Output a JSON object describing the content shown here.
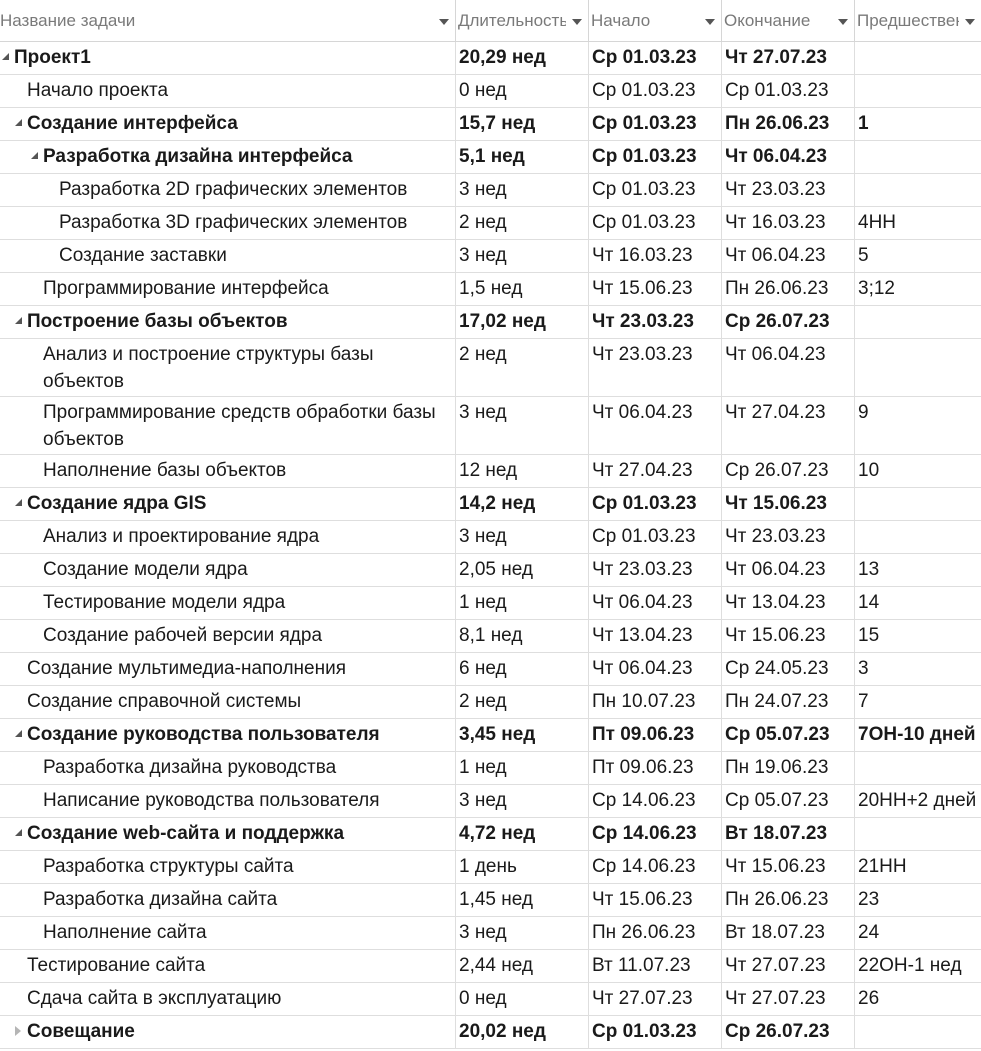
{
  "columns": [
    {
      "label": "Название задачи"
    },
    {
      "label": "Длительность"
    },
    {
      "label": "Начало"
    },
    {
      "label": "Окончание"
    },
    {
      "label": "Предшественники"
    }
  ],
  "rows": [
    {
      "level": 0,
      "summary": true,
      "expanded": true,
      "name": "Проект1",
      "duration": "20,29 нед",
      "start": "Ср 01.03.23",
      "finish": "Чт 27.07.23",
      "pred": ""
    },
    {
      "level": 1,
      "summary": false,
      "name": "Начало проекта",
      "duration": "0 нед",
      "start": "Ср 01.03.23",
      "finish": "Ср 01.03.23",
      "pred": ""
    },
    {
      "level": 1,
      "summary": true,
      "expanded": true,
      "name": "Создание интерфейса",
      "duration": "15,7 нед",
      "start": "Ср 01.03.23",
      "finish": "Пн 26.06.23",
      "pred": "1"
    },
    {
      "level": 2,
      "summary": true,
      "expanded": true,
      "name": "Разработка дизайна интерфейса",
      "duration": "5,1 нед",
      "start": "Ср 01.03.23",
      "finish": "Чт 06.04.23",
      "pred": ""
    },
    {
      "level": 3,
      "summary": false,
      "name": "Разработка 2D графических элементов",
      "duration": "3 нед",
      "start": "Ср 01.03.23",
      "finish": "Чт 23.03.23",
      "pred": ""
    },
    {
      "level": 3,
      "summary": false,
      "name": "Разработка 3D графических элементов",
      "duration": "2 нед",
      "start": "Ср 01.03.23",
      "finish": "Чт 16.03.23",
      "pred": "4НН"
    },
    {
      "level": 3,
      "summary": false,
      "name": "Создание заставки",
      "duration": "3 нед",
      "start": "Чт 16.03.23",
      "finish": "Чт 06.04.23",
      "pred": "5"
    },
    {
      "level": 2,
      "summary": false,
      "name": "Программирование интерфейса",
      "duration": "1,5 нед",
      "start": "Чт 15.06.23",
      "finish": "Пн 26.06.23",
      "pred": "3;12"
    },
    {
      "level": 1,
      "summary": true,
      "expanded": true,
      "name": "Построение базы объектов",
      "duration": "17,02 нед",
      "start": "Чт 23.03.23",
      "finish": "Ср 26.07.23",
      "pred": ""
    },
    {
      "level": 2,
      "summary": false,
      "tall": true,
      "name": "Анализ и построение структуры базы объектов",
      "duration": "2 нед",
      "start": "Чт 23.03.23",
      "finish": "Чт 06.04.23",
      "pred": ""
    },
    {
      "level": 2,
      "summary": false,
      "tall": true,
      "name": "Программирование средств обработки базы объектов",
      "duration": "3 нед",
      "start": "Чт 06.04.23",
      "finish": "Чт 27.04.23",
      "pred": "9"
    },
    {
      "level": 2,
      "summary": false,
      "name": "Наполнение базы объектов",
      "duration": "12 нед",
      "start": "Чт 27.04.23",
      "finish": "Ср 26.07.23",
      "pred": "10"
    },
    {
      "level": 1,
      "summary": true,
      "expanded": true,
      "name": "Создание ядра GIS",
      "duration": "14,2 нед",
      "start": "Ср 01.03.23",
      "finish": "Чт 15.06.23",
      "pred": ""
    },
    {
      "level": 2,
      "summary": false,
      "name": "Анализ и проектирование ядра",
      "duration": "3 нед",
      "start": "Ср 01.03.23",
      "finish": "Чт 23.03.23",
      "pred": ""
    },
    {
      "level": 2,
      "summary": false,
      "name": "Создание модели ядра",
      "duration": "2,05 нед",
      "start": "Чт 23.03.23",
      "finish": "Чт 06.04.23",
      "pred": "13"
    },
    {
      "level": 2,
      "summary": false,
      "name": "Тестирование модели ядра",
      "duration": "1 нед",
      "start": "Чт 06.04.23",
      "finish": "Чт 13.04.23",
      "pred": "14"
    },
    {
      "level": 2,
      "summary": false,
      "name": "Создание рабочей версии ядра",
      "duration": "8,1 нед",
      "start": "Чт 13.04.23",
      "finish": "Чт 15.06.23",
      "pred": "15"
    },
    {
      "level": 1,
      "summary": false,
      "name": "Создание мультимедиа-наполнения",
      "duration": "6 нед",
      "start": "Чт 06.04.23",
      "finish": "Ср 24.05.23",
      "pred": "3"
    },
    {
      "level": 1,
      "summary": false,
      "name": "Создание справочной системы",
      "duration": "2 нед",
      "start": "Пн 10.07.23",
      "finish": "Пн 24.07.23",
      "pred": "7"
    },
    {
      "level": 1,
      "summary": true,
      "expanded": true,
      "name": "Создание руководства пользователя",
      "duration": "3,45 нед",
      "start": "Пт 09.06.23",
      "finish": "Ср 05.07.23",
      "pred": "7ОН-10 дней"
    },
    {
      "level": 2,
      "summary": false,
      "name": "Разработка дизайна руководства",
      "duration": "1 нед",
      "start": "Пт 09.06.23",
      "finish": "Пн 19.06.23",
      "pred": ""
    },
    {
      "level": 2,
      "summary": false,
      "name": "Написание руководства пользователя",
      "duration": "3 нед",
      "start": "Ср 14.06.23",
      "finish": "Ср 05.07.23",
      "pred": "20НН+2 дней"
    },
    {
      "level": 1,
      "summary": true,
      "expanded": true,
      "name": "Создание web-сайта и поддержка",
      "duration": "4,72 нед",
      "start": "Ср 14.06.23",
      "finish": "Вт 18.07.23",
      "pred": ""
    },
    {
      "level": 2,
      "summary": false,
      "name": "Разработка структуры сайта",
      "duration": "1 день",
      "start": "Ср 14.06.23",
      "finish": "Чт 15.06.23",
      "pred": "21НН"
    },
    {
      "level": 2,
      "summary": false,
      "name": "Разработка дизайна сайта",
      "duration": "1,45 нед",
      "start": "Чт 15.06.23",
      "finish": "Пн 26.06.23",
      "pred": "23"
    },
    {
      "level": 2,
      "summary": false,
      "name": "Наполнение сайта",
      "duration": "3 нед",
      "start": "Пн 26.06.23",
      "finish": "Вт 18.07.23",
      "pred": "24"
    },
    {
      "level": 1,
      "summary": false,
      "name": "Тестирование сайта",
      "duration": "2,44 нед",
      "start": "Вт 11.07.23",
      "finish": "Чт 27.07.23",
      "pred": "22ОН-1 нед"
    },
    {
      "level": 1,
      "summary": false,
      "name": "Сдача сайта в эксплуатацию",
      "duration": "0 нед",
      "start": "Чт 27.07.23",
      "finish": "Чт 27.07.23",
      "pred": "26"
    },
    {
      "level": 1,
      "summary": true,
      "expanded": false,
      "name": "Совещание",
      "duration": "20,02 нед",
      "start": "Ср 01.03.23",
      "finish": "Ср 26.07.23",
      "pred": ""
    }
  ]
}
